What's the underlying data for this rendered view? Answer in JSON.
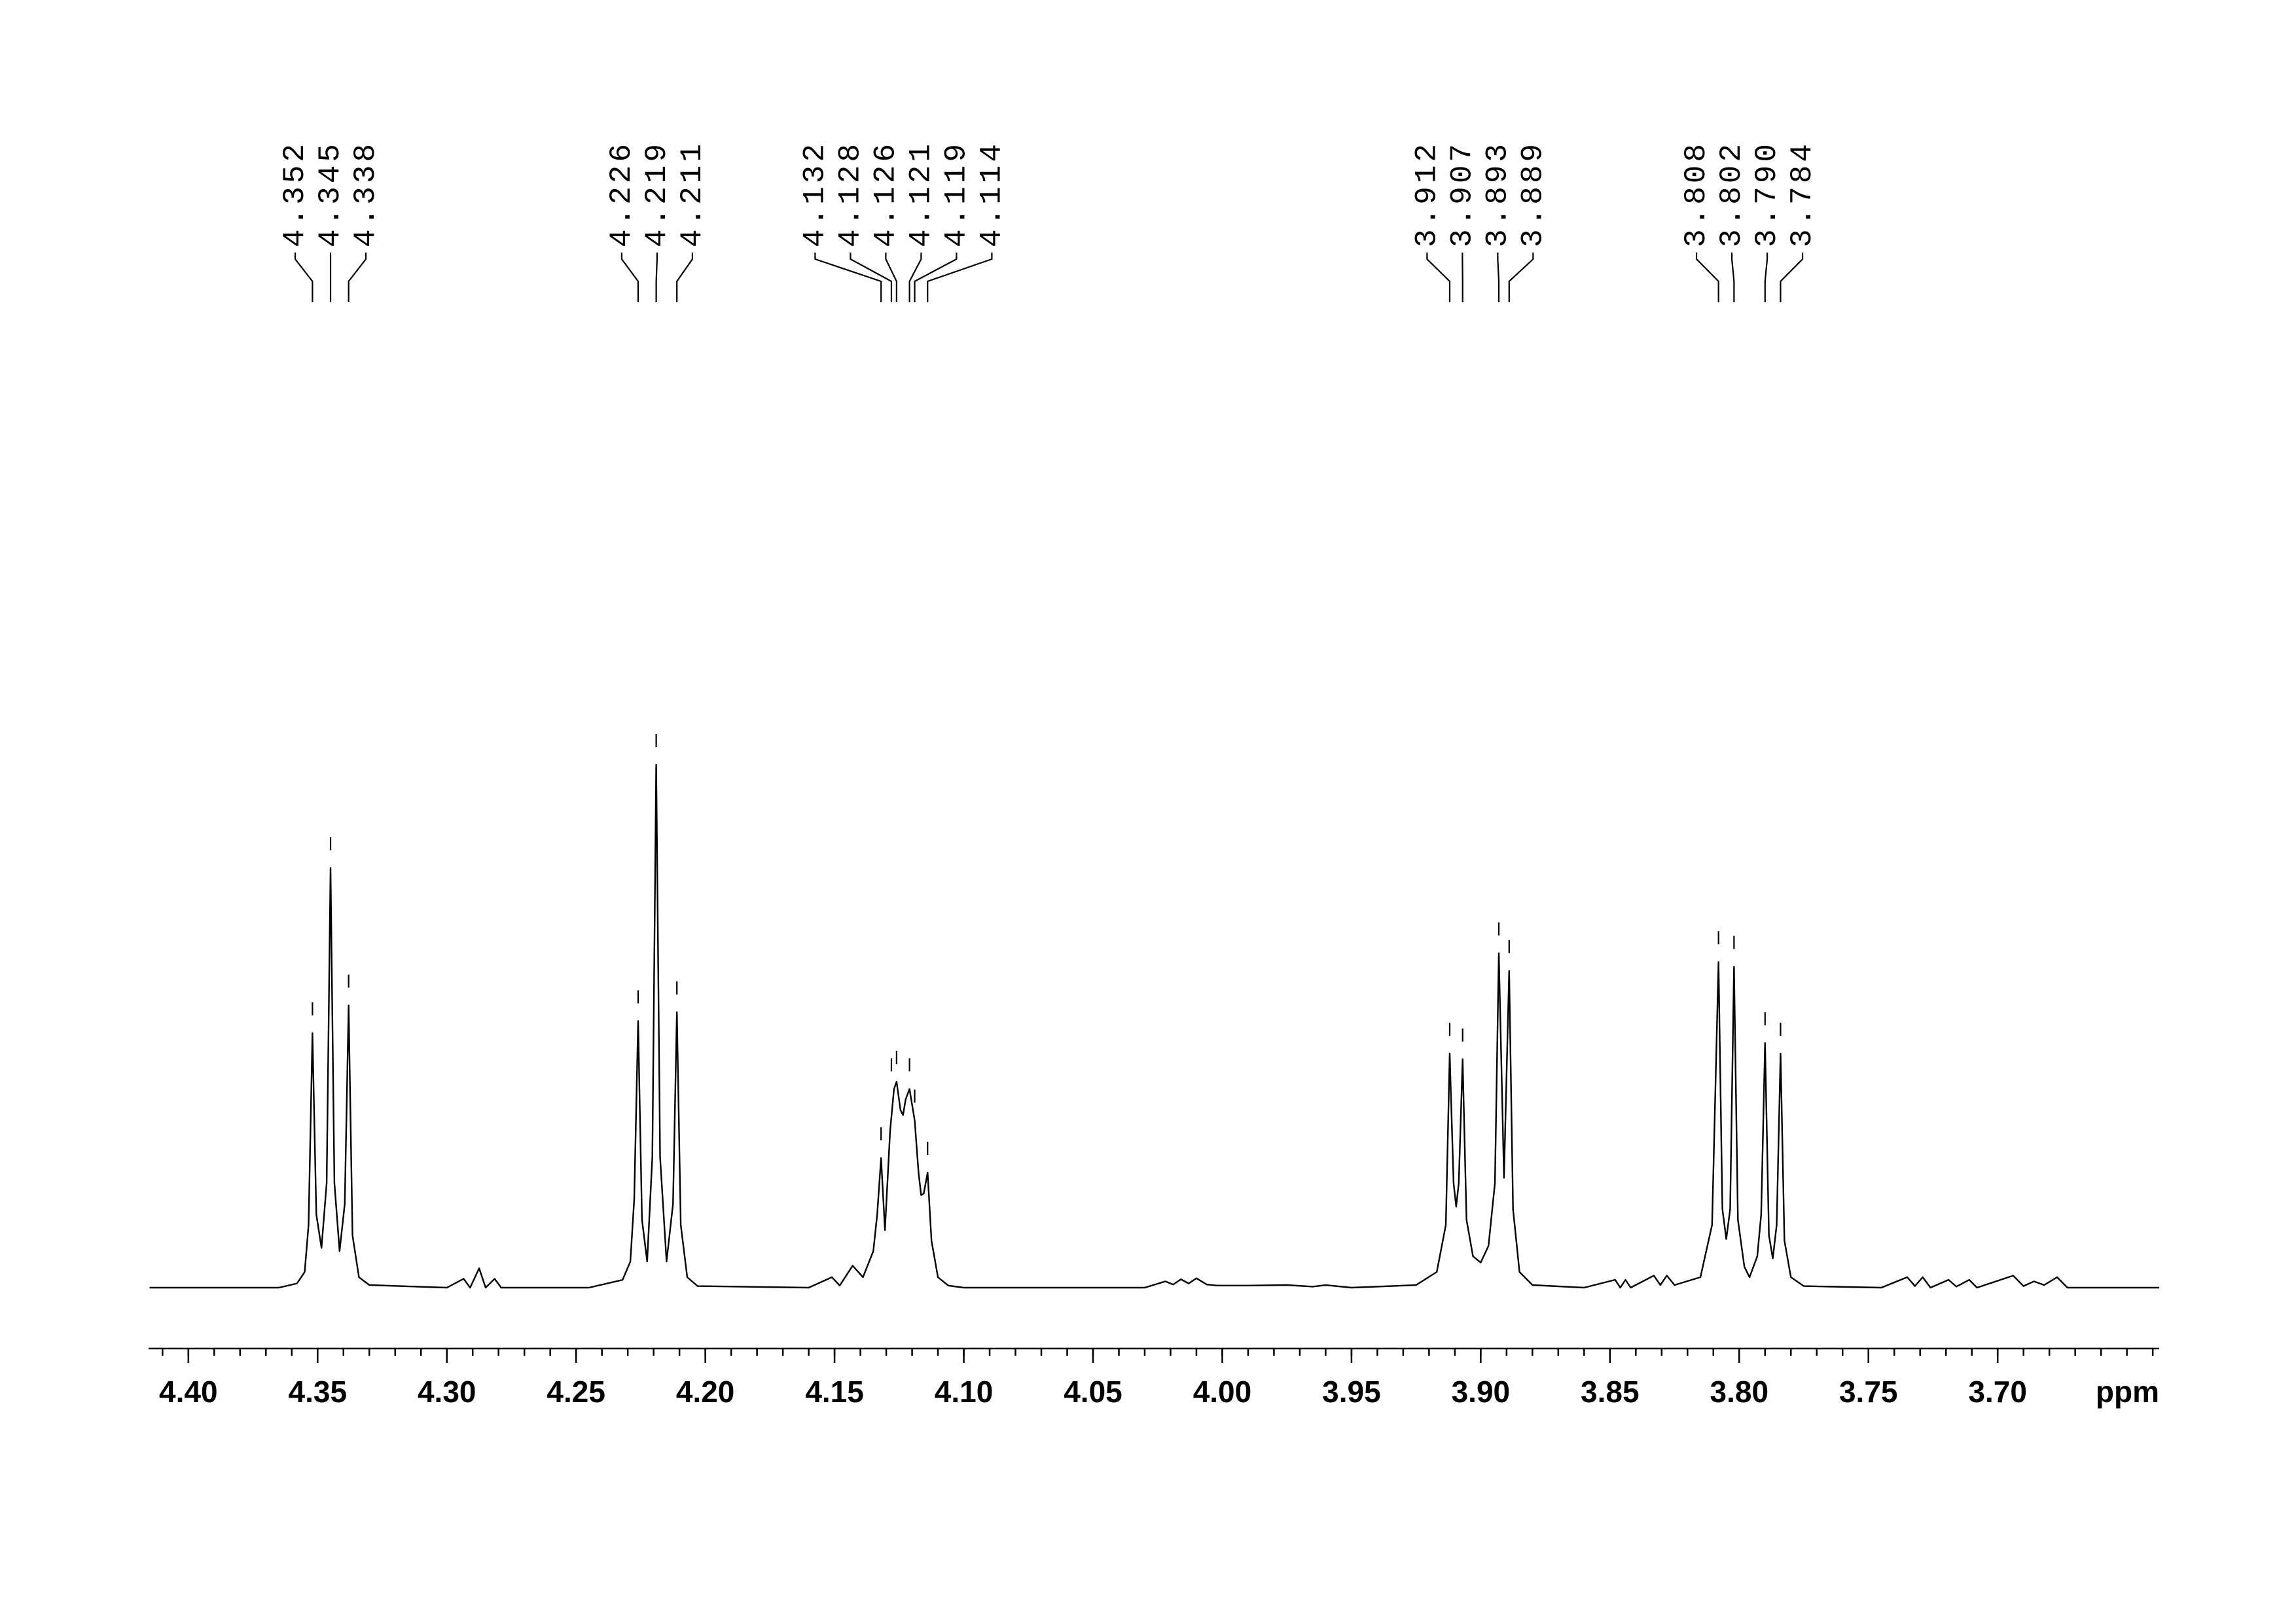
{
  "chart_data": {
    "type": "line",
    "color": "#000000",
    "xlabel": "ppm",
    "xlim": [
      4.4154,
      3.6375
    ],
    "ylim": [
      0,
      100
    ],
    "xticks": [
      {
        "value": 4.4,
        "label": "4.40"
      },
      {
        "value": 4.35,
        "label": "4.35"
      },
      {
        "value": 4.3,
        "label": "4.30"
      },
      {
        "value": 4.25,
        "label": "4.25"
      },
      {
        "value": 4.2,
        "label": "4.20"
      },
      {
        "value": 4.15,
        "label": "4.15"
      },
      {
        "value": 4.1,
        "label": "4.10"
      },
      {
        "value": 4.05,
        "label": "4.05"
      },
      {
        "value": 4,
        "label": "4.00"
      },
      {
        "value": 3.95,
        "label": "3.95"
      },
      {
        "value": 3.9,
        "label": "3.90"
      },
      {
        "value": 3.85,
        "label": "3.85"
      },
      {
        "value": 3.8,
        "label": "3.80"
      },
      {
        "value": 3.75,
        "label": "3.75"
      },
      {
        "value": 3.7,
        "label": "3.70"
      }
    ],
    "xminorticks": [
      4.41,
      4.4,
      4.39,
      4.38,
      4.37,
      4.36,
      4.35,
      4.34,
      4.33,
      4.32,
      4.31,
      4.3,
      4.29,
      4.28,
      4.27,
      4.26,
      4.25,
      4.24,
      4.23,
      4.22,
      4.21,
      4.2,
      4.19,
      4.18,
      4.17,
      4.16,
      4.15,
      4.14,
      4.13,
      4.12,
      4.11,
      4.1,
      4.09,
      4.08,
      4.07,
      4.06,
      4.05,
      4.04,
      4.03,
      4.02,
      4.01,
      4,
      3.99,
      3.98,
      3.97,
      3.96,
      3.95,
      3.94,
      3.93,
      3.92,
      3.91,
      3.9,
      3.89,
      3.88,
      3.87,
      3.86,
      3.85,
      3.84,
      3.83,
      3.82,
      3.81,
      3.8,
      3.79,
      3.78,
      3.77,
      3.76,
      3.75,
      3.74,
      3.73,
      3.72,
      3.71,
      3.7,
      3.69,
      3.68,
      3.67,
      3.66,
      3.65,
      3.64
    ],
    "peak_labels": [
      4.352,
      4.345,
      4.338,
      4.226,
      4.219,
      4.211,
      4.132,
      4.128,
      4.126,
      4.121,
      4.119,
      4.114,
      3.912,
      3.907,
      3.893,
      3.889,
      3.808,
      3.802,
      {
        "value": 3.79,
        "label": "3.790"
      },
      3.784
    ],
    "x": [
      4.415,
      4.365,
      4.358,
      4.355,
      4.3535,
      4.352,
      4.3505,
      4.3485,
      4.3465,
      4.345,
      4.3435,
      4.3415,
      4.3395,
      4.338,
      4.3365,
      4.334,
      4.33,
      4.3,
      4.2935,
      4.291,
      4.2875,
      4.285,
      4.2815,
      4.279,
      4.245,
      4.232,
      4.229,
      4.2275,
      4.226,
      4.2245,
      4.2225,
      4.2205,
      4.219,
      4.2175,
      4.215,
      4.2125,
      4.211,
      4.2095,
      4.207,
      4.203,
      4.16,
      4.151,
      4.148,
      4.143,
      4.139,
      4.135,
      4.1335,
      4.132,
      4.1305,
      4.1285,
      4.127,
      4.126,
      4.1245,
      4.1235,
      4.1225,
      4.121,
      4.119,
      4.1175,
      4.1165,
      4.1155,
      4.114,
      4.1125,
      4.11,
      4.106,
      4.1,
      4.03,
      4.022,
      4.019,
      4.016,
      4.013,
      4.01,
      4.006,
      4.002,
      3.99,
      3.975,
      3.965,
      3.96,
      3.95,
      3.925,
      3.917,
      3.9135,
      3.912,
      3.9105,
      3.9095,
      3.9085,
      3.907,
      3.9055,
      3.903,
      3.9,
      3.897,
      3.8945,
      3.893,
      3.891,
      3.889,
      3.8875,
      3.885,
      3.88,
      3.86,
      3.848,
      3.846,
      3.844,
      3.842,
      3.833,
      3.8305,
      3.828,
      3.825,
      3.815,
      3.8105,
      3.808,
      3.8065,
      3.805,
      3.8035,
      3.802,
      3.8005,
      3.798,
      3.796,
      3.793,
      3.7915,
      3.79,
      3.7885,
      3.787,
      3.7855,
      3.784,
      3.7825,
      3.78,
      3.775,
      3.745,
      3.735,
      3.732,
      3.729,
      3.726,
      3.719,
      3.716,
      3.711,
      3.708,
      3.694,
      3.69,
      3.686,
      3.682,
      3.677,
      3.673,
      3.6375
    ],
    "values": [
      0,
      0,
      0.8,
      3,
      12,
      48.7,
      14,
      7.6,
      20,
      80.3,
      20,
      7,
      16,
      54,
      10,
      2,
      0.5,
      0,
      1.7,
      0,
      3.7,
      0,
      1.7,
      0,
      0,
      1.5,
      5,
      17,
      51,
      13,
      5,
      25,
      100,
      25,
      5,
      16,
      52.7,
      12,
      2,
      0.3,
      0,
      2,
      0.4,
      4.2,
      2,
      7,
      14,
      24.8,
      11,
      30,
      38,
      39.4,
      34,
      33,
      36,
      38,
      32,
      22,
      17.7,
      18,
      22,
      9,
      2,
      0.4,
      0,
      0,
      1.2,
      0.6,
      1.6,
      0.8,
      1.8,
      0.6,
      0.4,
      0.4,
      0.5,
      0.2,
      0.5,
      0,
      0.5,
      3,
      12,
      44.8,
      20,
      15.5,
      20,
      43.7,
      13,
      6,
      4.8,
      8,
      20,
      64,
      21,
      60.6,
      15,
      3,
      0.5,
      0,
      1.5,
      0,
      1.5,
      0,
      2.3,
      0.5,
      2.3,
      0.5,
      2,
      12,
      62.3,
      15,
      9.3,
      15,
      61.4,
      13,
      4,
      2,
      6,
      14,
      46.8,
      10,
      5.6,
      12,
      44.8,
      9,
      2,
      0.3,
      0,
      2,
      0.3,
      2,
      0,
      1.5,
      0.2,
      1.5,
      0,
      2.3,
      0.3,
      1.2,
      0.5,
      2,
      0,
      0
    ]
  }
}
